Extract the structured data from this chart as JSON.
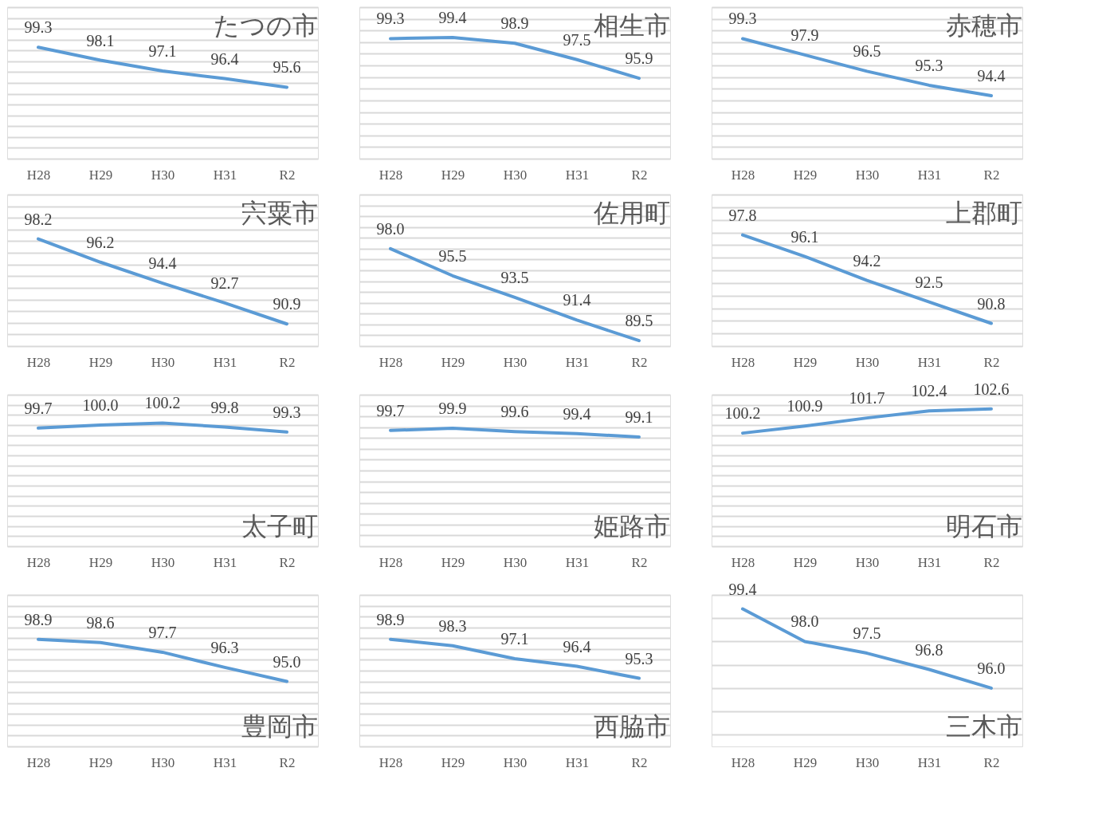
{
  "chart_data": [
    {
      "type": "line",
      "title": "たつの市",
      "categories": [
        "H28",
        "H29",
        "H30",
        "H31",
        "R2"
      ],
      "series": [
        {
          "color": "#5b9bd5",
          "values": [
            99.3,
            98.1,
            97.1,
            96.4,
            95.6
          ],
          "value_labels": [
            "99.3",
            "98.1",
            "97.1",
            "96.4",
            "95.6"
          ]
        }
      ],
      "ylim": [
        89,
        103
      ],
      "grid": "y",
      "tick_labels": "x"
    },
    {
      "type": "line",
      "title": "相生市",
      "categories": [
        "H28",
        "H29",
        "H30",
        "H31",
        "R2"
      ],
      "series": [
        {
          "color": "#5b9bd5",
          "values": [
            99.3,
            99.4,
            98.9,
            97.5,
            95.9
          ],
          "value_labels": [
            "99.3",
            "99.4",
            "98.9",
            "97.5",
            "95.9"
          ]
        }
      ],
      "ylim": [
        89,
        102
      ],
      "grid": "y",
      "tick_labels": "x"
    },
    {
      "type": "line",
      "title": "赤穂市",
      "categories": [
        "H28",
        "H29",
        "H30",
        "H31",
        "R2"
      ],
      "series": [
        {
          "color": "#5b9bd5",
          "values": [
            99.3,
            97.9,
            96.5,
            95.3,
            94.4
          ],
          "value_labels": [
            "99.3",
            "97.9",
            "96.5",
            "95.3",
            "94.4"
          ]
        }
      ],
      "ylim": [
        89,
        102
      ],
      "grid": "y",
      "tick_labels": "x"
    },
    {
      "type": "line",
      "title": "宍粟市",
      "categories": [
        "H28",
        "H29",
        "H30",
        "H31",
        "R2"
      ],
      "series": [
        {
          "color": "#5b9bd5",
          "values": [
            98.2,
            96.2,
            94.4,
            92.7,
            90.9
          ],
          "value_labels": [
            "98.2",
            "96.2",
            "94.4",
            "92.7",
            "90.9"
          ]
        }
      ],
      "ylim": [
        89,
        102
      ],
      "grid": "y",
      "tick_labels": "x"
    },
    {
      "type": "line",
      "title": "佐用町",
      "categories": [
        "H28",
        "H29",
        "H30",
        "H31",
        "R2"
      ],
      "series": [
        {
          "color": "#5b9bd5",
          "values": [
            98.0,
            95.5,
            93.5,
            91.4,
            89.5
          ],
          "value_labels": [
            "98.0",
            "95.5",
            "93.5",
            "91.4",
            "89.5"
          ]
        }
      ],
      "ylim": [
        89,
        103
      ],
      "grid": "y",
      "tick_labels": "x"
    },
    {
      "type": "line",
      "title": "上郡町",
      "categories": [
        "H28",
        "H29",
        "H30",
        "H31",
        "R2"
      ],
      "series": [
        {
          "color": "#5b9bd5",
          "values": [
            97.8,
            96.1,
            94.2,
            92.5,
            90.8
          ],
          "value_labels": [
            "97.8",
            "96.1",
            "94.2",
            "92.5",
            "90.8"
          ]
        }
      ],
      "ylim": [
        89,
        101
      ],
      "grid": "y",
      "tick_labels": "x"
    },
    {
      "type": "line",
      "title": "太子町",
      "categories": [
        "H28",
        "H29",
        "H30",
        "H31",
        "R2"
      ],
      "series": [
        {
          "color": "#5b9bd5",
          "values": [
            99.7,
            100.0,
            100.2,
            99.8,
            99.3
          ],
          "value_labels": [
            "99.7",
            "100.0",
            "100.2",
            "99.8",
            "99.3"
          ]
        }
      ],
      "ylim": [
        88,
        103
      ],
      "grid": "y",
      "tick_labels": "x"
    },
    {
      "type": "line",
      "title": "姫路市",
      "categories": [
        "H28",
        "H29",
        "H30",
        "H31",
        "R2"
      ],
      "series": [
        {
          "color": "#5b9bd5",
          "values": [
            99.7,
            99.9,
            99.6,
            99.4,
            99.1
          ],
          "value_labels": [
            "99.7",
            "99.9",
            "99.6",
            "99.4",
            "99.1"
          ]
        }
      ],
      "ylim": [
        89,
        103
      ],
      "grid": "y",
      "tick_labels": "x"
    },
    {
      "type": "line",
      "title": "明石市",
      "categories": [
        "H28",
        "H29",
        "H30",
        "H31",
        "R2"
      ],
      "series": [
        {
          "color": "#5b9bd5",
          "values": [
            100.2,
            100.9,
            101.7,
            102.4,
            102.6
          ],
          "value_labels": [
            "100.2",
            "100.9",
            "101.7",
            "102.4",
            "102.6"
          ]
        }
      ],
      "ylim": [
        89,
        104
      ],
      "grid": "y",
      "tick_labels": "x"
    },
    {
      "type": "line",
      "title": "豊岡市",
      "categories": [
        "H28",
        "H29",
        "H30",
        "H31",
        "R2"
      ],
      "series": [
        {
          "color": "#5b9bd5",
          "values": [
            98.9,
            98.6,
            97.7,
            96.3,
            95.0
          ],
          "value_labels": [
            "98.9",
            "98.6",
            "97.7",
            "96.3",
            "95.0"
          ]
        }
      ],
      "ylim": [
        89,
        103
      ],
      "grid": "y",
      "tick_labels": "x"
    },
    {
      "type": "line",
      "title": "西脇市",
      "categories": [
        "H28",
        "H29",
        "H30",
        "H31",
        "R2"
      ],
      "series": [
        {
          "color": "#5b9bd5",
          "values": [
            98.9,
            98.3,
            97.1,
            96.4,
            95.3
          ],
          "value_labels": [
            "98.9",
            "98.3",
            "97.1",
            "96.4",
            "95.3"
          ]
        }
      ],
      "ylim": [
        89,
        103
      ],
      "grid": "y",
      "tick_labels": "x"
    },
    {
      "type": "line",
      "title": "三木市",
      "categories": [
        "H28",
        "H29",
        "H30",
        "H31",
        "R2"
      ],
      "series": [
        {
          "color": "#5b9bd5",
          "values": [
            99.4,
            98.0,
            97.5,
            96.8,
            96.0
          ],
          "value_labels": [
            "99.4",
            "98.0",
            "97.5",
            "96.8",
            "96.0"
          ]
        }
      ],
      "ylim": [
        93.5,
        100
      ],
      "grid": "y",
      "tick_labels": "x"
    }
  ]
}
